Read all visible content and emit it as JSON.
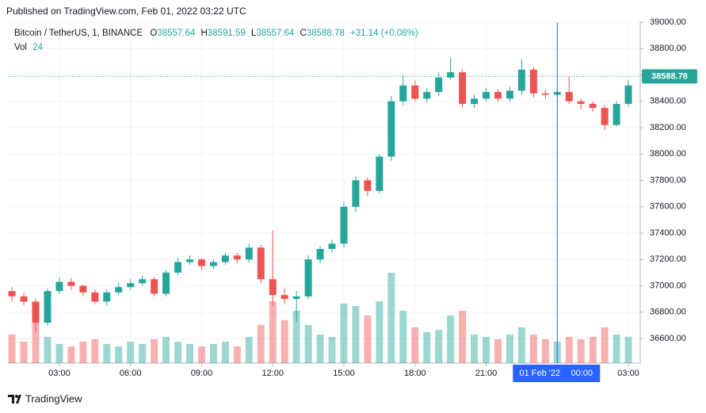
{
  "header": {
    "title": "Published on TradingView.com, Feb 01, 2022 03:22 UTC"
  },
  "legend": {
    "symbol": "Bitcoin / TetherUS, 1, BINANCE",
    "open": {
      "label": "O",
      "value": 38557.64
    },
    "high": {
      "label": "H",
      "value": 38591.59
    },
    "low": {
      "label": "L",
      "value": 38557.64
    },
    "close": {
      "label": "C",
      "value": 38588.78
    },
    "change": "+31.14 (+0.08%)",
    "volume": {
      "label": "Vol",
      "value": 24
    }
  },
  "chart_data": {
    "type": "candlestick",
    "up_color": "#26a69a",
    "down_color": "#ef5350",
    "grid": true,
    "x": [
      1,
      1.5,
      2,
      2.5,
      3,
      3.5,
      4,
      4.5,
      5,
      5.5,
      6,
      6.5,
      7,
      7.5,
      8,
      8.5,
      9,
      9.5,
      10,
      10.5,
      11,
      11.5,
      12,
      12.5,
      13,
      13.5,
      14,
      14.5,
      15,
      15.5,
      16,
      16.5,
      17,
      17.5,
      18,
      18.5,
      19,
      19.5,
      20,
      20.5,
      21,
      21.5,
      22,
      22.5,
      23,
      23.5,
      24,
      24.5,
      25,
      25.5,
      26,
      26.5,
      27
    ],
    "open": [
      36960,
      36920,
      36880,
      36720,
      36960,
      37030,
      37000,
      36950,
      36880,
      36950,
      36990,
      37020,
      37050,
      36940,
      37100,
      37180,
      37200,
      37150,
      37180,
      37230,
      37200,
      37290,
      37050,
      36930,
      36900,
      36920,
      37200,
      37280,
      37320,
      37600,
      37800,
      37720,
      37980,
      38400,
      38520,
      38420,
      38470,
      38580,
      38620,
      38380,
      38420,
      38470,
      38420,
      38480,
      38640,
      38460,
      38450,
      38470,
      38400,
      38380,
      38350,
      38220,
      38380
    ],
    "high": [
      36990,
      36950,
      36900,
      36980,
      37060,
      37060,
      37010,
      36970,
      36970,
      37020,
      37050,
      37080,
      37070,
      37120,
      37210,
      37230,
      37210,
      37200,
      37250,
      37250,
      37320,
      37310,
      37420,
      36980,
      36960,
      37230,
      37300,
      37350,
      37640,
      37830,
      37820,
      38000,
      38440,
      38600,
      38560,
      38500,
      38620,
      38730,
      38640,
      38450,
      38500,
      38490,
      38510,
      38720,
      38660,
      38490,
      38500,
      38590,
      38420,
      38400,
      38370,
      38400,
      38560
    ],
    "low": [
      36880,
      36850,
      36650,
      36700,
      36940,
      36970,
      36920,
      36860,
      36850,
      36930,
      36970,
      37000,
      36920,
      36920,
      37080,
      37160,
      37120,
      37130,
      37160,
      37170,
      37180,
      37020,
      36850,
      36860,
      36720,
      36900,
      37170,
      37250,
      37290,
      37560,
      37680,
      37700,
      37950,
      38370,
      38400,
      38390,
      38440,
      38560,
      38350,
      38350,
      38400,
      38400,
      38400,
      38450,
      38430,
      38420,
      38430,
      38380,
      38340,
      38320,
      38180,
      38210,
      38360
    ],
    "close": [
      36920,
      36880,
      36720,
      36960,
      37030,
      37000,
      36950,
      36880,
      36950,
      36990,
      37020,
      37050,
      36940,
      37100,
      37180,
      37200,
      37150,
      37180,
      37230,
      37200,
      37290,
      37050,
      36930,
      36900,
      36920,
      37200,
      37280,
      37320,
      37600,
      37800,
      37720,
      37980,
      38400,
      38520,
      38420,
      38470,
      38580,
      38620,
      38380,
      38420,
      38470,
      38420,
      38480,
      38640,
      38460,
      38450,
      38470,
      38400,
      38380,
      38350,
      38220,
      38380,
      38520
    ],
    "volume": [
      120,
      90,
      200,
      110,
      80,
      70,
      90,
      100,
      80,
      70,
      90,
      80,
      100,
      110,
      90,
      80,
      70,
      80,
      90,
      70,
      110,
      160,
      260,
      180,
      220,
      160,
      120,
      110,
      250,
      240,
      200,
      260,
      380,
      220,
      150,
      130,
      140,
      200,
      220,
      120,
      110,
      100,
      120,
      150,
      120,
      100,
      90,
      110,
      100,
      110,
      150,
      120,
      110
    ],
    "volume_ylim": [
      0,
      1000
    ],
    "xlim": [
      0.83,
      27.5
    ],
    "xticks": [
      {
        "value": 3,
        "label": "03:00"
      },
      {
        "value": 6,
        "label": "06:00"
      },
      {
        "value": 9,
        "label": "09:00"
      },
      {
        "value": 12,
        "label": "12:00"
      },
      {
        "value": 15,
        "label": "15:00"
      },
      {
        "value": 18,
        "label": "18:00"
      },
      {
        "value": 21,
        "label": "21:00"
      },
      {
        "value": 27,
        "label": "03:00"
      }
    ],
    "ylim": [
      36414,
      39000
    ],
    "yticks": [
      {
        "value": 36600,
        "label": "36600.00"
      },
      {
        "value": 36800,
        "label": "36800.00"
      },
      {
        "value": 37000,
        "label": "37000.00"
      },
      {
        "value": 37200,
        "label": "37200.00"
      },
      {
        "value": 37400,
        "label": "37400.00"
      },
      {
        "value": 37600,
        "label": "37600.00"
      },
      {
        "value": 37800,
        "label": "37800.00"
      },
      {
        "value": 38000,
        "label": "38000.00"
      },
      {
        "value": 38200,
        "label": "38200.00"
      },
      {
        "value": 38400,
        "label": "38400.00"
      },
      {
        "value": 38600,
        "label": "38600.00"
      },
      {
        "value": 38800,
        "label": "38800.00"
      },
      {
        "value": 39000,
        "label": "39000.00"
      }
    ],
    "crosshair": {
      "x": 24,
      "date": "01 Feb '22",
      "time": "00:00",
      "color": "#2962ff"
    }
  },
  "footer": {
    "brand": "TradingView"
  }
}
